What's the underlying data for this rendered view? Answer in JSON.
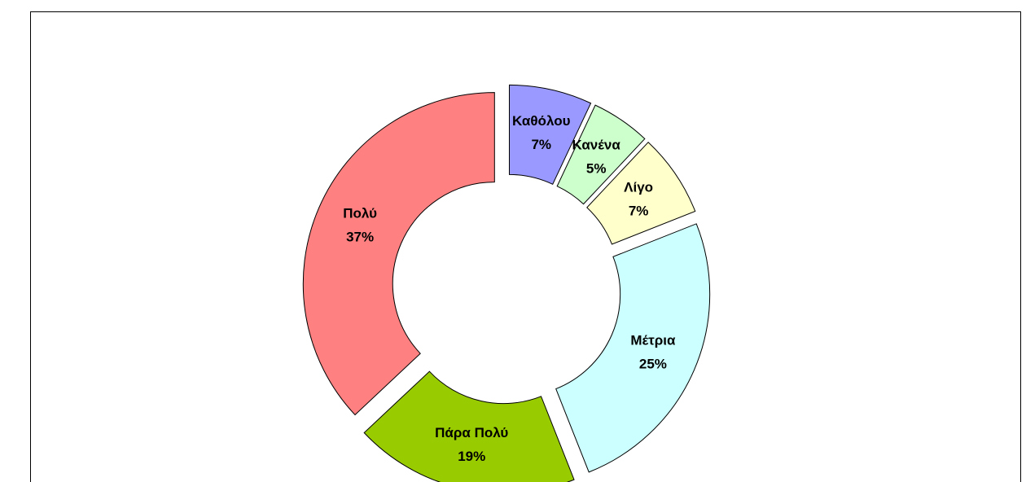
{
  "chart_data": {
    "type": "donut",
    "categories": [
      "Καθόλου",
      "Κανένα",
      "Λίγο",
      "Μέτρια",
      "Πάρα Πολύ",
      "Πολύ"
    ],
    "values": [
      7,
      5,
      7,
      25,
      19,
      37
    ],
    "value_labels": [
      "7%",
      "5%",
      "7%",
      "25%",
      "19%",
      "37%"
    ],
    "colors": [
      "#9999ff",
      "#ccffcc",
      "#ffffcc",
      "#ccffff",
      "#99cc00",
      "#ff8080"
    ]
  }
}
